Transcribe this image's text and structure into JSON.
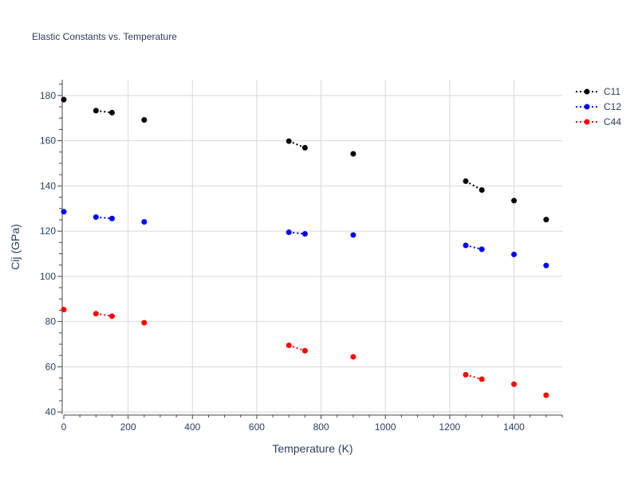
{
  "chart_data": {
    "type": "line",
    "title": "Elastic Constants vs. Temperature",
    "xlabel": "Temperature (K)",
    "ylabel": "Cij (GPa)",
    "xlim": [
      0,
      1550
    ],
    "ylim": [
      39,
      187
    ],
    "xticks": [
      0,
      200,
      400,
      600,
      800,
      1000,
      1200,
      1400
    ],
    "yticks": [
      40,
      60,
      80,
      100,
      120,
      140,
      160,
      180
    ],
    "grid": true,
    "legend_position": "top-right",
    "line_style": "dotted",
    "series": [
      {
        "name": "C11",
        "color": "#000000",
        "points": [
          [
            0,
            178.2
          ],
          [
            100,
            173.3
          ],
          [
            150,
            172.4
          ],
          [
            250,
            169.2
          ],
          [
            700,
            159.8
          ],
          [
            750,
            156.9
          ],
          [
            900,
            154.2
          ],
          [
            1250,
            142.1
          ],
          [
            1300,
            138.2
          ],
          [
            1400,
            133.5
          ],
          [
            1500,
            125.1
          ]
        ]
      },
      {
        "name": "C12",
        "color": "#0000ff",
        "points": [
          [
            0,
            128.6
          ],
          [
            100,
            126.2
          ],
          [
            150,
            125.6
          ],
          [
            250,
            124.1
          ],
          [
            700,
            119.5
          ],
          [
            750,
            118.8
          ],
          [
            900,
            118.3
          ],
          [
            1250,
            113.7
          ],
          [
            1300,
            112.0
          ],
          [
            1400,
            109.7
          ],
          [
            1500,
            104.8
          ]
        ]
      },
      {
        "name": "C44",
        "color": "#ff0000",
        "points": [
          [
            0,
            85.3
          ],
          [
            100,
            83.5
          ],
          [
            150,
            82.4
          ],
          [
            250,
            79.5
          ],
          [
            700,
            69.5
          ],
          [
            750,
            67.1
          ],
          [
            900,
            64.4
          ],
          [
            1250,
            56.5
          ],
          [
            1300,
            54.5
          ],
          [
            1400,
            52.3
          ],
          [
            1500,
            47.4
          ]
        ]
      }
    ]
  }
}
